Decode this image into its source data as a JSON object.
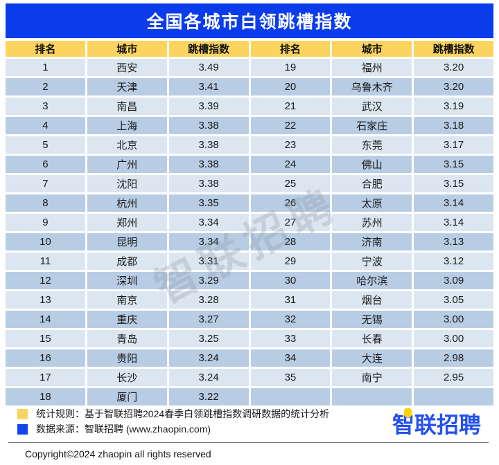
{
  "title": "全国各城市白领跳槽指数",
  "watermark": "智联招聘",
  "table": {
    "columns": [
      "排名",
      "城市",
      "跳槽指数",
      "排名",
      "城市",
      "跳槽指数"
    ],
    "rows": [
      [
        "1",
        "西安",
        "3.49",
        "19",
        "福州",
        "3.20"
      ],
      [
        "2",
        "天津",
        "3.41",
        "20",
        "乌鲁木齐",
        "3.20"
      ],
      [
        "3",
        "南昌",
        "3.39",
        "21",
        "武汉",
        "3.19"
      ],
      [
        "4",
        "上海",
        "3.38",
        "22",
        "石家庄",
        "3.18"
      ],
      [
        "5",
        "北京",
        "3.38",
        "23",
        "东莞",
        "3.17"
      ],
      [
        "6",
        "广州",
        "3.38",
        "24",
        "佛山",
        "3.15"
      ],
      [
        "7",
        "沈阳",
        "3.38",
        "25",
        "合肥",
        "3.15"
      ],
      [
        "8",
        "杭州",
        "3.35",
        "26",
        "太原",
        "3.14"
      ],
      [
        "9",
        "郑州",
        "3.34",
        "27",
        "苏州",
        "3.14"
      ],
      [
        "10",
        "昆明",
        "3.34",
        "28",
        "济南",
        "3.13"
      ],
      [
        "11",
        "成都",
        "3.31",
        "29",
        "宁波",
        "3.12"
      ],
      [
        "12",
        "深圳",
        "3.29",
        "30",
        "哈尔滨",
        "3.09"
      ],
      [
        "13",
        "南京",
        "3.28",
        "31",
        "烟台",
        "3.05"
      ],
      [
        "14",
        "重庆",
        "3.27",
        "32",
        "无锡",
        "3.00"
      ],
      [
        "15",
        "青岛",
        "3.25",
        "33",
        "长春",
        "3.00"
      ],
      [
        "16",
        "贵阳",
        "3.24",
        "34",
        "大连",
        "2.98"
      ],
      [
        "17",
        "长沙",
        "3.24",
        "35",
        "南宁",
        "2.95"
      ],
      [
        "18",
        "厦门",
        "3.22",
        "",
        "",
        ""
      ]
    ]
  },
  "legend": [
    {
      "swatch_color": "#FBD45F",
      "text": "统计规则：基于智联招聘2024春季白领跳槽指数调研数据的统计分析"
    },
    {
      "swatch_color": "#1243EF",
      "text": "数据来源：智联招聘 (www.zhaopin.com)"
    }
  ],
  "logo": {
    "text": "智联招聘",
    "color": "#2450F0",
    "dot_color": "#FFD200"
  },
  "copyright": "Copyright©2024 zhaopin all rights reserved",
  "colors": {
    "title_bar": "#0B3CEC",
    "header_bg": "#FBD45F",
    "row_light": "#DCE6F1",
    "row_dark": "#B8CCE4"
  },
  "chart_data": {
    "type": "table",
    "title": "全国各城市白领跳槽指数",
    "columns": [
      "排名",
      "城市",
      "跳槽指数"
    ],
    "rows": [
      [
        1,
        "西安",
        3.49
      ],
      [
        2,
        "天津",
        3.41
      ],
      [
        3,
        "南昌",
        3.39
      ],
      [
        4,
        "上海",
        3.38
      ],
      [
        5,
        "北京",
        3.38
      ],
      [
        6,
        "广州",
        3.38
      ],
      [
        7,
        "沈阳",
        3.38
      ],
      [
        8,
        "杭州",
        3.35
      ],
      [
        9,
        "郑州",
        3.34
      ],
      [
        10,
        "昆明",
        3.34
      ],
      [
        11,
        "成都",
        3.31
      ],
      [
        12,
        "深圳",
        3.29
      ],
      [
        13,
        "南京",
        3.28
      ],
      [
        14,
        "重庆",
        3.27
      ],
      [
        15,
        "青岛",
        3.25
      ],
      [
        16,
        "贵阳",
        3.24
      ],
      [
        17,
        "长沙",
        3.24
      ],
      [
        18,
        "厦门",
        3.22
      ],
      [
        19,
        "福州",
        3.2
      ],
      [
        20,
        "乌鲁木齐",
        3.2
      ],
      [
        21,
        "武汉",
        3.19
      ],
      [
        22,
        "石家庄",
        3.18
      ],
      [
        23,
        "东莞",
        3.17
      ],
      [
        24,
        "佛山",
        3.15
      ],
      [
        25,
        "合肥",
        3.15
      ],
      [
        26,
        "太原",
        3.14
      ],
      [
        27,
        "苏州",
        3.14
      ],
      [
        28,
        "济南",
        3.13
      ],
      [
        29,
        "宁波",
        3.12
      ],
      [
        30,
        "哈尔滨",
        3.09
      ],
      [
        31,
        "烟台",
        3.05
      ],
      [
        32,
        "无锡",
        3.0
      ],
      [
        33,
        "长春",
        3.0
      ],
      [
        34,
        "大连",
        2.98
      ],
      [
        35,
        "南宁",
        2.95
      ]
    ]
  }
}
